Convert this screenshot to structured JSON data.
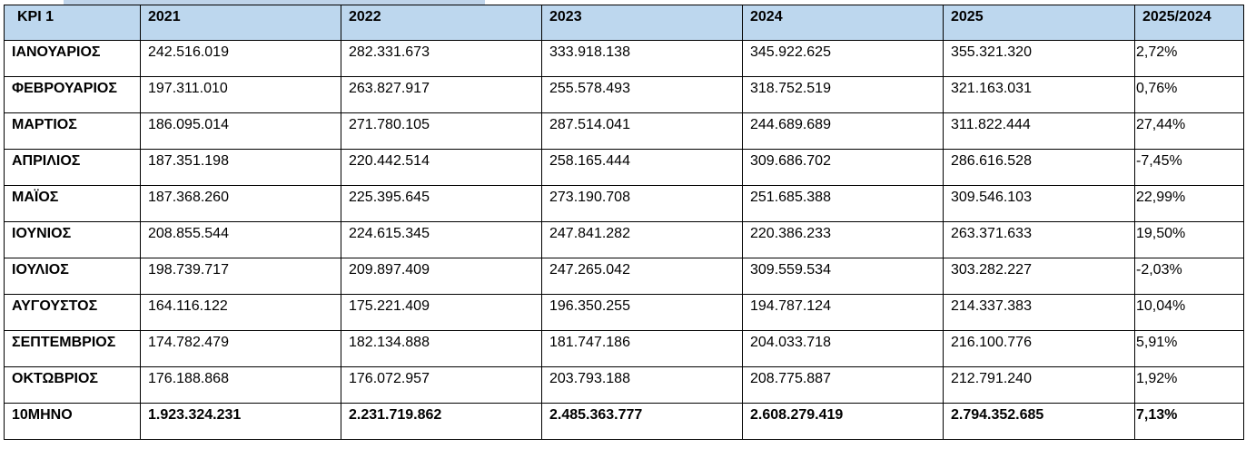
{
  "table": {
    "headers": [
      "KPI 1",
      "2021",
      "2022",
      "2023",
      "2024",
      "2025",
      "2025/2024"
    ],
    "rows": [
      [
        "ΙΑΝΟΥΑΡΙΟΣ",
        "242.516.019",
        "282.331.673",
        "333.918.138",
        "345.922.625",
        "355.321.320",
        "2,72%"
      ],
      [
        "ΦΕΒΡΟΥΑΡΙΟΣ",
        "197.311.010",
        "263.827.917",
        "255.578.493",
        "318.752.519",
        "321.163.031",
        "0,76%"
      ],
      [
        "ΜΑΡΤΙΟΣ",
        "186.095.014",
        "271.780.105",
        "287.514.041",
        "244.689.689",
        "311.822.444",
        "27,44%"
      ],
      [
        "ΑΠΡΙΛΙΟΣ",
        "187.351.198",
        "220.442.514",
        "258.165.444",
        "309.686.702",
        "286.616.528",
        "-7,45%"
      ],
      [
        "ΜΑΪΟΣ",
        "187.368.260",
        "225.395.645",
        "273.190.708",
        "251.685.388",
        "309.546.103",
        "22,99%"
      ],
      [
        "ΙΟΥΝΙΟΣ",
        "208.855.544",
        "224.615.345",
        "247.841.282",
        "220.386.233",
        "263.371.633",
        "19,50%"
      ],
      [
        "ΙΟΥΛΙΟΣ",
        "198.739.717",
        "209.897.409",
        "247.265.042",
        "309.559.534",
        "303.282.227",
        "-2,03%"
      ],
      [
        "ΑΥΓΟΥΣΤΟΣ",
        "164.116.122",
        "175.221.409",
        "196.350.255",
        "194.787.124",
        "214.337.383",
        "10,04%"
      ],
      [
        "ΣΕΠΤΕΜΒΡΙΟΣ",
        "174.782.479",
        "182.134.888",
        "181.747.186",
        "204.033.718",
        "216.100.776",
        "5,91%"
      ],
      [
        "ΟΚΤΩΒΡΙΟΣ",
        "176.188.868",
        "176.072.957",
        "203.793.188",
        "208.775.887",
        "212.791.240",
        "1,92%"
      ]
    ],
    "total": [
      "10ΜΗΝΟ",
      "1.923.324.231",
      "2.231.719.862",
      "2.485.363.777",
      "2.608.279.419",
      "2.794.352.685",
      "7,13%"
    ]
  },
  "colors": {
    "header_bg": "#bdd7ee",
    "border": "#000000"
  }
}
